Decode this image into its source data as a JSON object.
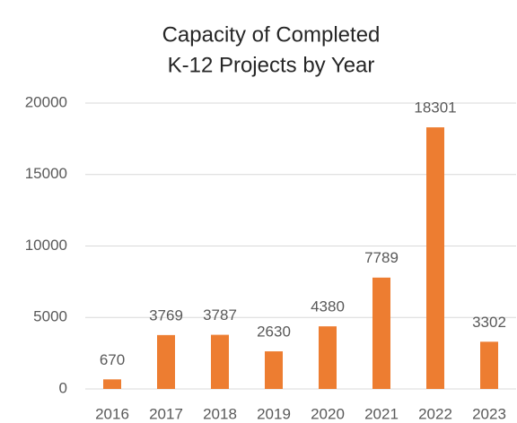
{
  "chart_data": {
    "type": "bar",
    "title": [
      "Capacity of Completed",
      "K-12 Projects by Year"
    ],
    "categories": [
      "2016",
      "2017",
      "2018",
      "2019",
      "2020",
      "2021",
      "2022",
      "2023"
    ],
    "values": [
      670,
      3769,
      3787,
      2630,
      4380,
      7789,
      18301,
      3302
    ],
    "color": "#ed7d31",
    "ylim": [
      0,
      20000
    ],
    "yticks": [
      0,
      5000,
      10000,
      15000,
      20000
    ],
    "grid": true
  }
}
